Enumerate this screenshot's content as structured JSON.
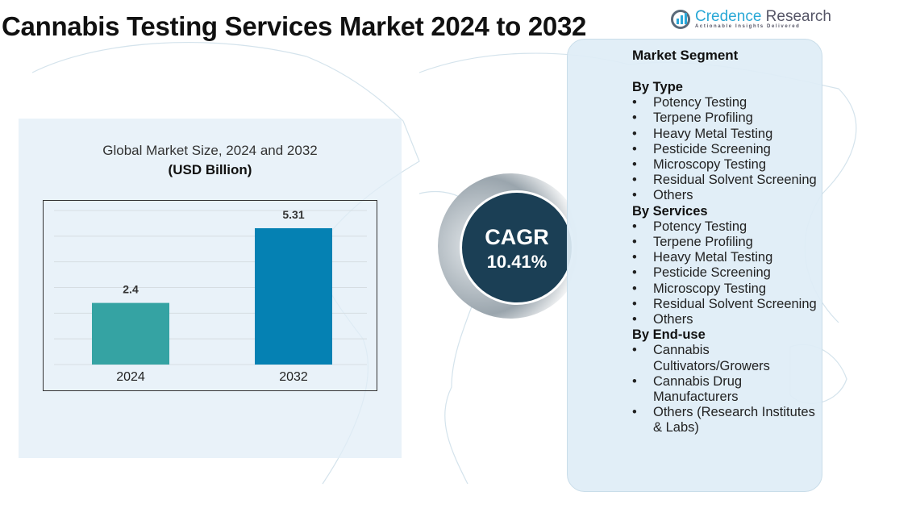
{
  "title": "Cannabis Testing Services Market 2024 to 2032",
  "logo": {
    "name": "Credence",
    "name2": " Research",
    "tagline": "Actionable Insights Delivered"
  },
  "colors": {
    "bar_2024": "#35a3a3",
    "bar_2032": "#0581b3",
    "cagr_bg": "#1b3f55",
    "panel_bg": "#e1eef7"
  },
  "chart_data": {
    "type": "bar",
    "title": "Global Market Size, 2024 and 2032",
    "subtitle": "(USD Billion)",
    "categories": [
      "2024",
      "2032"
    ],
    "values": [
      2.4,
      5.31
    ],
    "value_labels": [
      "2.4",
      "5.31"
    ],
    "ylim": [
      0,
      6
    ],
    "grid": true
  },
  "cagr": {
    "label": "CAGR",
    "value": "10.41%"
  },
  "segments": {
    "title": "Market Segment",
    "groups": [
      {
        "name": "By Type",
        "items": [
          "Potency Testing",
          "Terpene Profiling",
          "Heavy Metal Testing",
          "Pesticide Screening",
          "Microscopy Testing",
          "Residual Solvent Screening",
          "Others"
        ]
      },
      {
        "name": "By Services",
        "items": [
          "Potency Testing",
          "Terpene Profiling",
          "Heavy Metal Testing",
          "Pesticide Screening",
          "Microscopy Testing",
          "Residual Solvent Screening",
          "Others"
        ]
      },
      {
        "name": "By End-use",
        "items": [
          "Cannabis Cultivators/Growers",
          "Cannabis Drug Manufacturers",
          "Others (Research Institutes & Labs)"
        ]
      }
    ]
  }
}
